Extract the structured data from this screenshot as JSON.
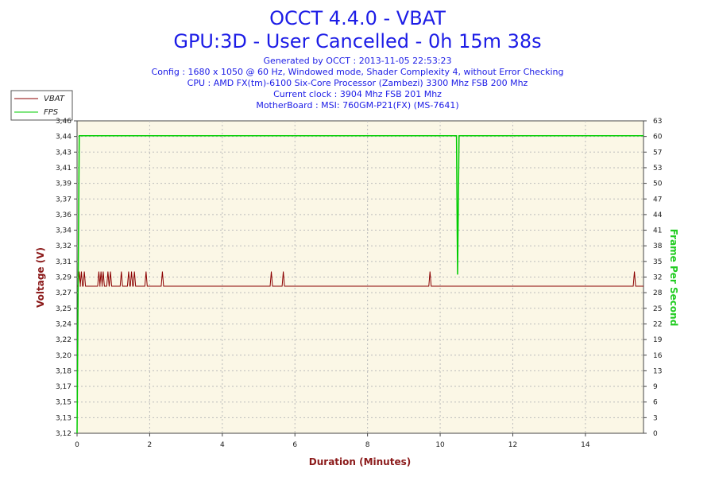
{
  "chart_data": {
    "type": "line",
    "title": "OCCT 4.4.0 - VBAT",
    "subtitle": "GPU:3D - User Cancelled - 0h 15m 38s",
    "info_lines": [
      "Generated by OCCT : 2013-11-05 22:53:23",
      "Config : 1680 x 1050 @ 60 Hz, Windowed mode, Shader Complexity 4, without Error Checking",
      "CPU : AMD FX(tm)-6100 Six-Core Processor (Zambezi) 3300 Mhz FSB 200 Mhz",
      "Current clock : 3904 Mhz FSB 201 Mhz",
      "MotherBoard : MSI: 760GM-P21(FX) (MS-7641)"
    ],
    "xlabel": "Duration (Minutes)",
    "ylabel": "Voltage (V)",
    "y2label": "Frame Per Second",
    "xlim": [
      0,
      15.6
    ],
    "ylim": [
      3.12,
      3.46
    ],
    "y2lim": [
      0,
      63
    ],
    "x_ticks": [
      "0",
      "2",
      "4",
      "6",
      "8",
      "10",
      "12",
      "14"
    ],
    "y_ticks": [
      "3,12",
      "3,13",
      "3,15",
      "3,17",
      "3,18",
      "3,20",
      "3,22",
      "3,24",
      "3,25",
      "3,27",
      "3,29",
      "3,31",
      "3,32",
      "3,34",
      "3,36",
      "3,37",
      "3,39",
      "3,41",
      "3,43",
      "3,44",
      "3,46"
    ],
    "y2_ticks": [
      "0",
      "3",
      "6",
      "9",
      "13",
      "16",
      "19",
      "22",
      "25",
      "28",
      "32",
      "35",
      "38",
      "41",
      "44",
      "47",
      "50",
      "53",
      "57",
      "60",
      "63"
    ],
    "grid": true,
    "legend_position": "top-left",
    "series": [
      {
        "name": "VBAT",
        "color": "#8b0000",
        "axis": "left",
        "baseline": 3.28,
        "spikes": [
          {
            "x": 0.06,
            "y": 3.296
          },
          {
            "x": 0.12,
            "y": 3.296
          },
          {
            "x": 0.2,
            "y": 3.296
          },
          {
            "x": 0.6,
            "y": 3.296
          },
          {
            "x": 0.66,
            "y": 3.296
          },
          {
            "x": 0.72,
            "y": 3.296
          },
          {
            "x": 0.85,
            "y": 3.296
          },
          {
            "x": 0.92,
            "y": 3.296
          },
          {
            "x": 1.22,
            "y": 3.296
          },
          {
            "x": 1.42,
            "y": 3.296
          },
          {
            "x": 1.5,
            "y": 3.296
          },
          {
            "x": 1.58,
            "y": 3.296
          },
          {
            "x": 1.9,
            "y": 3.296
          },
          {
            "x": 2.35,
            "y": 3.296
          },
          {
            "x": 5.35,
            "y": 3.296
          },
          {
            "x": 5.68,
            "y": 3.296
          },
          {
            "x": 9.72,
            "y": 3.296
          },
          {
            "x": 15.35,
            "y": 3.296
          }
        ]
      },
      {
        "name": "FPS",
        "color": "#00cc00",
        "axis": "right",
        "points": [
          [
            0,
            0
          ],
          [
            0.06,
            60
          ],
          [
            10.45,
            60
          ],
          [
            10.47,
            40
          ],
          [
            10.48,
            32
          ],
          [
            10.52,
            60
          ],
          [
            15.6,
            60
          ]
        ]
      }
    ]
  }
}
